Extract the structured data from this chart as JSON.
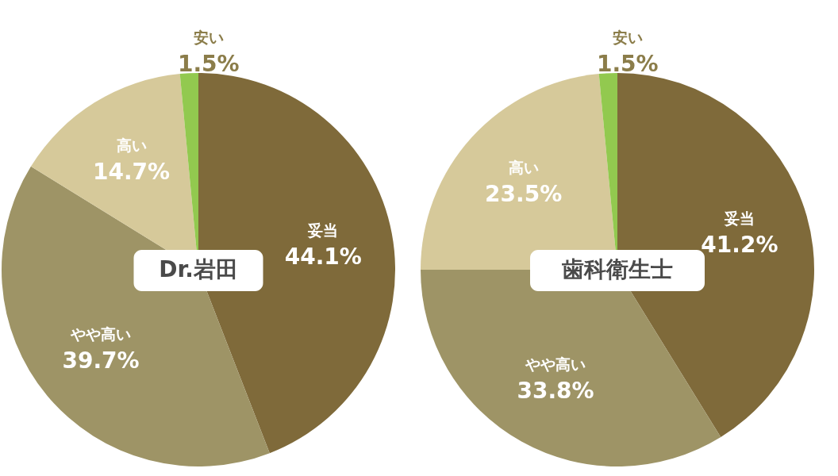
{
  "chart_data": [
    {
      "type": "pie",
      "title": "Dr.岩田",
      "categories": [
        "妥当",
        "やや高い",
        "高い",
        "安い"
      ],
      "values": [
        44.1,
        39.7,
        14.7,
        1.5
      ],
      "colors": [
        "#7f6a3a",
        "#9e9466",
        "#d6c99a",
        "#92c94f"
      ],
      "value_labels": [
        "44.1%",
        "39.7%",
        "14.7%",
        "1.5%"
      ]
    },
    {
      "type": "pie",
      "title": "歯科衛生士",
      "categories": [
        "妥当",
        "やや高い",
        "高い",
        "安い"
      ],
      "values": [
        41.2,
        33.8,
        23.5,
        1.5
      ],
      "colors": [
        "#7f6a3a",
        "#9e9466",
        "#d6c99a",
        "#92c94f"
      ],
      "value_labels": [
        "41.2%",
        "33.8%",
        "23.5%",
        "1.5%"
      ]
    }
  ]
}
